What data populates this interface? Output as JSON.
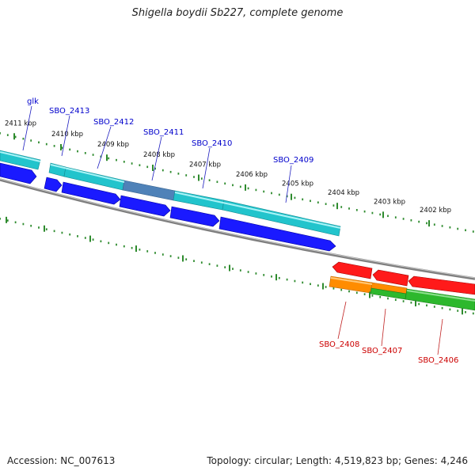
{
  "title": "Shigella boydii Sb227, complete genome",
  "footer": {
    "accession": "Accession: NC_007613",
    "topology": "Topology: circular; Length: 4,519,823 bp; Genes: 4,246"
  },
  "colors": {
    "forward_label": "#0000cc",
    "reverse_label": "#cc0000",
    "tick": "#2e8b2e",
    "backbone": "#7f7f7f",
    "cds_forward": "#1a1aff",
    "gene_cyan": "#22c4cc",
    "gene_steel": "#4f82b8",
    "cds_reverse": "#ff1a1a",
    "gene_orange": "#ff8c00",
    "gene_green": "#2db82d"
  },
  "scale": {
    "unit": "kbp",
    "ticks": [
      {
        "kb": 2411,
        "label": "2411 kbp"
      },
      {
        "kb": 2410,
        "label": "2410 kbp"
      },
      {
        "kb": 2409,
        "label": "2409 kbp"
      },
      {
        "kb": 2408,
        "label": "2408 kbp"
      },
      {
        "kb": 2407,
        "label": "2407 kbp"
      },
      {
        "kb": 2406,
        "label": "2406 kbp"
      },
      {
        "kb": 2405,
        "label": "2405 kbp"
      },
      {
        "kb": 2404,
        "label": "2404 kbp"
      },
      {
        "kb": 2403,
        "label": "2403 kbp"
      },
      {
        "kb": 2402,
        "label": "2402 kbp"
      }
    ]
  },
  "genes": {
    "forward": [
      {
        "name": "glk"
      },
      {
        "name": "SBO_2413"
      },
      {
        "name": "SBO_2412"
      },
      {
        "name": "SBO_2411"
      },
      {
        "name": "SBO_2410"
      },
      {
        "name": "SBO_2409"
      }
    ],
    "reverse": [
      {
        "name": "SBO_2408"
      },
      {
        "name": "SBO_2407"
      },
      {
        "name": "SBO_2406"
      }
    ]
  }
}
